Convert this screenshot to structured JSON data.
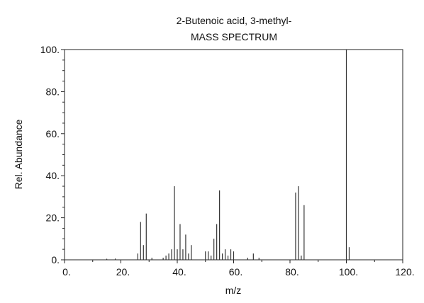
{
  "chart_data": {
    "type": "bar",
    "title": "2-Butenoic acid, 3-methyl-",
    "subtitle": "MASS SPECTRUM",
    "xlabel": "m/z",
    "ylabel": "Rel. Abundance",
    "xlim": [
      0,
      120
    ],
    "ylim": [
      0,
      100
    ],
    "xticks": [
      0,
      20,
      40,
      60,
      80,
      100,
      120
    ],
    "xtick_labels": [
      "0.",
      "20.",
      "40.",
      "60.",
      "80.",
      "100.",
      "120."
    ],
    "yticks": [
      0,
      20,
      40,
      60,
      80,
      100
    ],
    "ytick_labels": [
      "0.",
      "20.",
      "40.",
      "60.",
      "80.",
      "100."
    ],
    "grid": false,
    "peaks": [
      {
        "mz": 15,
        "abundance": 0.5
      },
      {
        "mz": 18,
        "abundance": 0.6
      },
      {
        "mz": 26,
        "abundance": 3
      },
      {
        "mz": 27,
        "abundance": 18
      },
      {
        "mz": 28,
        "abundance": 7
      },
      {
        "mz": 29,
        "abundance": 22
      },
      {
        "mz": 31,
        "abundance": 1
      },
      {
        "mz": 35,
        "abundance": 1
      },
      {
        "mz": 36,
        "abundance": 2
      },
      {
        "mz": 37,
        "abundance": 3
      },
      {
        "mz": 38,
        "abundance": 5
      },
      {
        "mz": 39,
        "abundance": 35
      },
      {
        "mz": 40,
        "abundance": 5
      },
      {
        "mz": 41,
        "abundance": 17
      },
      {
        "mz": 42,
        "abundance": 5
      },
      {
        "mz": 43,
        "abundance": 12
      },
      {
        "mz": 44,
        "abundance": 3
      },
      {
        "mz": 45,
        "abundance": 7
      },
      {
        "mz": 50,
        "abundance": 4
      },
      {
        "mz": 51,
        "abundance": 4
      },
      {
        "mz": 52,
        "abundance": 2
      },
      {
        "mz": 53,
        "abundance": 10
      },
      {
        "mz": 54,
        "abundance": 17
      },
      {
        "mz": 55,
        "abundance": 33
      },
      {
        "mz": 56,
        "abundance": 3
      },
      {
        "mz": 57,
        "abundance": 5
      },
      {
        "mz": 58,
        "abundance": 2
      },
      {
        "mz": 59,
        "abundance": 5
      },
      {
        "mz": 60,
        "abundance": 4
      },
      {
        "mz": 65,
        "abundance": 1
      },
      {
        "mz": 67,
        "abundance": 3
      },
      {
        "mz": 69,
        "abundance": 1
      },
      {
        "mz": 82,
        "abundance": 32
      },
      {
        "mz": 83,
        "abundance": 35
      },
      {
        "mz": 84,
        "abundance": 2
      },
      {
        "mz": 85,
        "abundance": 26
      },
      {
        "mz": 100,
        "abundance": 100
      },
      {
        "mz": 101,
        "abundance": 6
      }
    ]
  }
}
